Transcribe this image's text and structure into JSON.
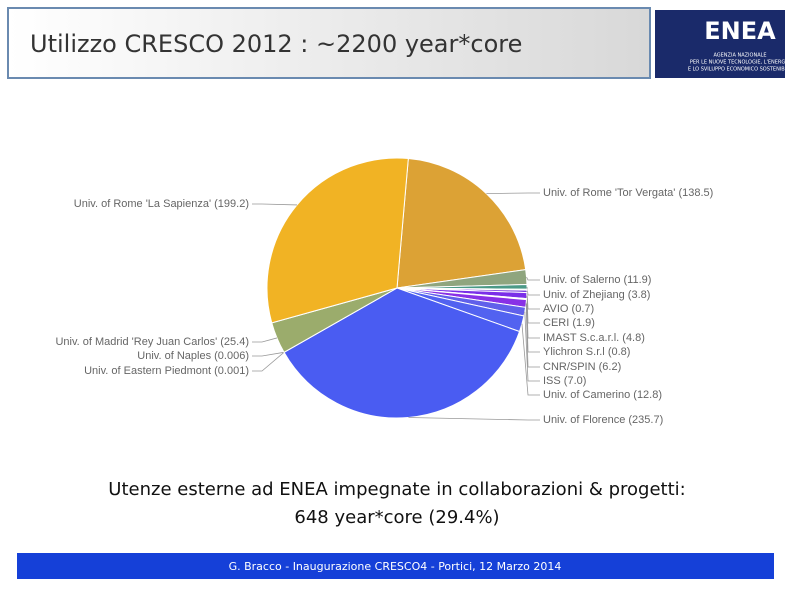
{
  "header": {
    "title": "Utilizzo CRESCO 2012 : ~2200 year*core",
    "logo": {
      "name": "ENEA",
      "lines": [
        "AGENZIA NAZIONALE",
        "PER LE NUOVE TECNOLOGIE, L'ENERGIA",
        "E LO SVILUPPO ECONOMICO SOSTENIBILE"
      ]
    }
  },
  "chart_data": {
    "type": "pie",
    "categories": [
      "Univ. of Rome 'Tor Vergata'",
      "Univ. of Salerno",
      "Univ. of Zhejiang",
      "AVIO",
      "CERI",
      "IMAST S.c.a.r.l.",
      "Ylichron S.r.l",
      "CNR/SPIN",
      "ISS",
      "Univ. of Camerino",
      "Univ. of Florence",
      "Univ. of Eastern Piedmont",
      "Univ. of Naples",
      "Univ. of Madrid 'Rey Juan Carlos'",
      "Univ. of Rome 'La Sapienza'"
    ],
    "values": [
      138.5,
      11.9,
      3.8,
      0.7,
      1.9,
      4.8,
      0.8,
      6.2,
      7.0,
      12.8,
      235.7,
      0.001,
      0.006,
      25.4,
      199.2
    ],
    "value_labels": [
      "(138.5)",
      "(11.9)",
      "(3.8)",
      "(0.7)",
      "(1.9)",
      "(4.8)",
      "(0.8)",
      "(6.2)",
      "(7.0)",
      "(12.8)",
      "(235.7)",
      "(0.001)",
      "(0.006)",
      "(25.4)",
      "(199.2)"
    ],
    "colors": [
      "#dca235",
      "#8fa57e",
      "#4b9a87",
      "#6a3fd8",
      "#7b3ee0",
      "#7a2ee8",
      "#5a3ed8",
      "#8830e6",
      "#6060ea",
      "#5262f0",
      "#4a5cf2",
      "#7aa05a",
      "#8fa060",
      "#9bac6c",
      "#f1b324"
    ]
  },
  "caption": [
    "Utenze esterne ad ENEA impegnate in collaborazioni & progetti:",
    "648 year*core (29.4%)"
  ],
  "footer": "G. Bracco - Inaugurazione CRESCO4 -  Portici, 12 Marzo 2014"
}
